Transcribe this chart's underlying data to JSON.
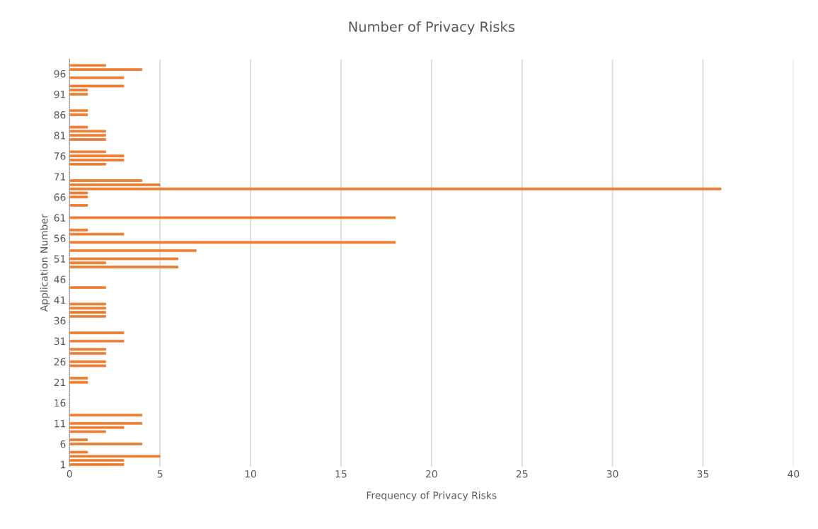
{
  "chart_data": {
    "type": "bar",
    "orientation": "horizontal",
    "title": "Number of Privacy Risks",
    "xlabel": "Frequency of Privacy Risks",
    "ylabel": "Application Number",
    "categories": [
      null,
      null,
      null,
      "96",
      null,
      null,
      null,
      null,
      "91",
      null,
      null,
      null,
      null,
      "86",
      null,
      null,
      null,
      null,
      "81",
      null,
      null,
      null,
      null,
      "76",
      null,
      null,
      null,
      null,
      "71",
      null,
      null,
      null,
      null,
      "66",
      null,
      null,
      null,
      null,
      "61",
      null,
      null,
      null,
      null,
      "56",
      null,
      null,
      null,
      null,
      "51",
      null,
      null,
      null,
      null,
      "46",
      null,
      null,
      null,
      null,
      "41",
      null,
      null,
      null,
      null,
      "36",
      null,
      null,
      null,
      null,
      "31",
      null,
      null,
      null,
      null,
      "26",
      null,
      null,
      null,
      null,
      "21",
      null,
      null,
      null,
      null,
      "16",
      null,
      null,
      null,
      null,
      "11",
      null,
      null,
      null,
      null,
      "6",
      null,
      null,
      null,
      null,
      "1"
    ],
    "values": [
      0,
      2,
      4,
      0,
      3,
      0,
      3,
      1,
      1,
      0,
      0,
      0,
      1,
      1,
      0,
      0,
      1,
      2,
      2,
      2,
      0,
      0,
      2,
      3,
      3,
      2,
      0,
      0,
      0,
      4,
      5,
      36,
      1,
      1,
      0,
      1,
      0,
      0,
      18,
      0,
      0,
      1,
      3,
      0,
      18,
      0,
      7,
      0,
      6,
      2,
      6,
      0,
      0,
      0,
      0,
      2,
      0,
      0,
      0,
      2,
      2,
      2,
      2,
      0,
      0,
      0,
      3,
      0,
      3,
      0,
      2,
      2,
      0,
      2,
      2,
      0,
      0,
      1,
      1,
      0,
      0,
      0,
      0,
      0,
      0,
      0,
      4,
      0,
      4,
      3,
      2,
      0,
      1,
      4,
      0,
      1,
      5,
      3,
      3
    ],
    "color": "#ed7d31",
    "xlim": [
      0,
      40
    ],
    "xticks": [
      0,
      5,
      10,
      15,
      20,
      25,
      30,
      35,
      40
    ],
    "grid": "x"
  }
}
